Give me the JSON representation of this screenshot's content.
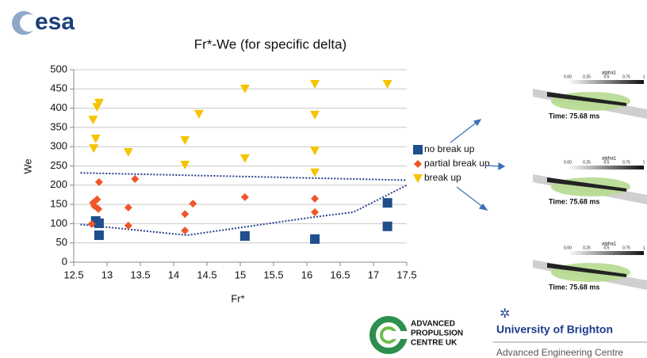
{
  "logo": "esa",
  "chart_data": {
    "type": "scatter",
    "title": "Fr*-We (for specific delta)",
    "x_label": "Fr*",
    "y_label": "We",
    "xlim": [
      12.5,
      17.5
    ],
    "xticks": [
      12.5,
      13,
      13.5,
      14,
      14.5,
      15,
      15.5,
      16,
      16.5,
      17,
      17.5
    ],
    "ylim": [
      0,
      500
    ],
    "yticks": [
      0,
      50,
      100,
      150,
      200,
      250,
      300,
      350,
      400,
      450,
      500
    ],
    "grid": true,
    "legend": "right",
    "series": [
      {
        "name": "no break up",
        "color": "#1f4e8c",
        "marker": "square",
        "x": [
          12.83,
          12.88,
          12.88,
          15.07,
          16.12,
          17.21,
          17.21
        ],
        "values": [
          107,
          101,
          70,
          68,
          60,
          154,
          93
        ]
      },
      {
        "name": "partial break up",
        "color": "#f0562a",
        "marker": "diamond",
        "x": [
          12.79,
          12.85,
          12.81,
          12.88,
          12.87,
          12.77,
          13.32,
          13.42,
          13.32,
          14.17,
          14.29,
          14.17,
          15.07,
          16.12,
          16.12
        ],
        "values": [
          154,
          163,
          146,
          208,
          138,
          99,
          142,
          216,
          95,
          125,
          152,
          82,
          169,
          165,
          130
        ]
      },
      {
        "name": "break up",
        "color": "#f5c400",
        "marker": "triangle-down",
        "x": [
          12.79,
          12.85,
          12.88,
          12.83,
          12.8,
          13.32,
          14.17,
          14.17,
          14.38,
          15.07,
          15.07,
          16.12,
          16.12,
          16.12,
          16.12,
          17.21
        ],
        "values": [
          370,
          403,
          414,
          321,
          296,
          286,
          317,
          253,
          385,
          451,
          270,
          463,
          383,
          290,
          233,
          463
        ]
      }
    ],
    "boundaries": [
      {
        "color": "#2b3f8c",
        "x": [
          12.6,
          17.5
        ],
        "values": [
          232,
          213
        ]
      },
      {
        "color": "#2b3f8c",
        "x": [
          12.6,
          14.2,
          16.1,
          16.7,
          17.5
        ],
        "values": [
          98,
          70,
          117,
          130,
          200
        ]
      }
    ]
  },
  "panels": [
    {
      "title": "alpha1",
      "ticks": [
        "0.00",
        "0.25",
        "0.5",
        "0.75",
        "1"
      ],
      "time": "Time: 75.68 ms"
    },
    {
      "title": "alpha1",
      "ticks": [
        "0.00",
        "0.25",
        "0.5",
        "0.75",
        "1"
      ],
      "time": "Time: 75.68 ms"
    },
    {
      "title": "alpha1",
      "ticks": [
        "0.00",
        "0.25",
        "0.5",
        "0.75",
        "1"
      ],
      "time": "Time: 75.68 ms"
    }
  ],
  "apc_logo": [
    "ADVANCED",
    "PROPULSION",
    "CENTRE UK"
  ],
  "university": "University of Brighton",
  "centre": "Advanced Engineering Centre"
}
